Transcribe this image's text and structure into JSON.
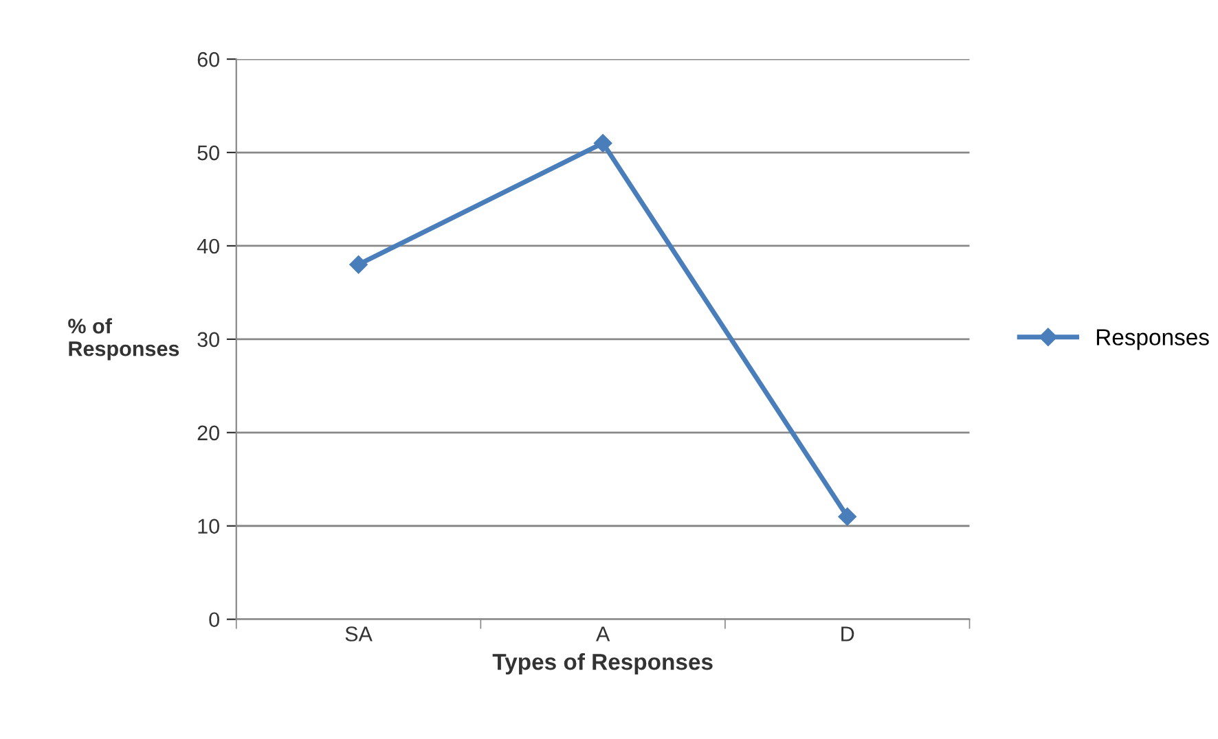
{
  "chart_data": {
    "type": "line",
    "xlabel": "Types of Responses",
    "ylabel": "% of\nResponses",
    "categories": [
      "SA",
      "A",
      "D"
    ],
    "series": [
      {
        "name": "Responses",
        "color": "#4a7ebb",
        "values": [
          38,
          51,
          11
        ]
      }
    ],
    "ylim": [
      0,
      60
    ],
    "yticks": [
      0,
      10,
      20,
      30,
      40,
      50,
      60
    ],
    "grid": "y",
    "legend": "right",
    "marker": "diamond",
    "line_style": "solid"
  }
}
